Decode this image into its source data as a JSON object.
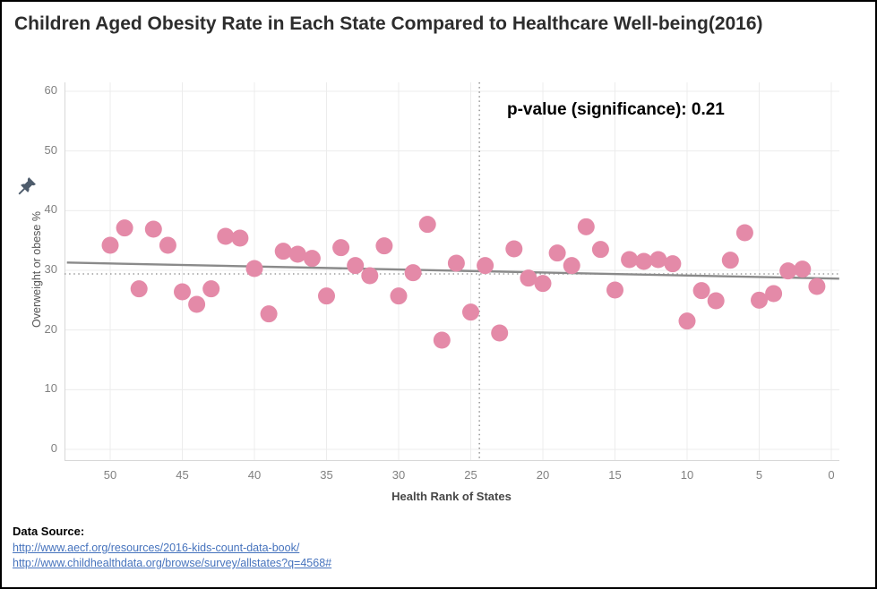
{
  "title": "Children Aged Obesity Rate in Each State Compared to Healthcare Well-being(2016)",
  "annotation": {
    "text": "p-value (significance): 0.21"
  },
  "chart_data": {
    "type": "scatter",
    "title": "Children Aged Obesity Rate in Each State Compared to Healthcare Well-being(2016)",
    "xlabel": "Health Rank of States",
    "ylabel": "Overweight or obese %",
    "x_axis_reversed": true,
    "grid": true,
    "x_ticks": [
      50,
      45,
      40,
      35,
      30,
      25,
      20,
      15,
      10,
      5,
      0
    ],
    "y_ticks": [
      0,
      10,
      20,
      30,
      40,
      50,
      60
    ],
    "xlim": [
      53.5,
      -0.6
    ],
    "ylim": [
      -2,
      61.5
    ],
    "ranks": [
      50,
      49,
      48,
      47,
      46,
      45,
      44,
      43,
      42,
      41,
      40,
      39,
      38,
      37,
      36,
      35,
      34,
      33,
      32,
      31,
      30,
      29,
      28,
      27,
      26,
      25,
      24,
      23,
      22,
      21,
      20,
      19,
      18,
      17,
      16,
      15,
      14,
      13,
      12,
      11,
      10,
      9,
      8,
      7,
      6,
      5,
      4,
      3,
      2,
      1
    ],
    "values": [
      34.2,
      37.1,
      26.9,
      36.9,
      34.2,
      26.4,
      24.3,
      26.9,
      35.7,
      35.4,
      30.3,
      22.7,
      33.2,
      32.7,
      32.0,
      25.7,
      33.8,
      30.8,
      29.1,
      34.1,
      25.7,
      29.6,
      37.7,
      18.3,
      31.2,
      23.0,
      30.8,
      19.5,
      33.6,
      28.7,
      27.8,
      32.9,
      30.8,
      37.3,
      33.5,
      26.7,
      31.8,
      31.5,
      31.8,
      31.1,
      21.5,
      26.6,
      24.9,
      31.7,
      36.3,
      25.0,
      26.1,
      29.9,
      30.2,
      27.3
    ],
    "trend_line": {
      "start": {
        "rank": 53.0,
        "value": 31.3
      },
      "end": {
        "rank": -0.55,
        "value": 28.6
      }
    },
    "reference_lines": {
      "vertical_rank": 24.4,
      "horizontal_value": 29.4
    },
    "legend": "none"
  },
  "footer": {
    "label": "Data Source:",
    "links": [
      "http://www.aecf.org/resources/2016-kids-count-data-book/",
      "http://www.childhealthdata.org/browse/survey/allstates?q=4568#"
    ]
  },
  "icons": {
    "pin": "pushpin-icon"
  },
  "colors": {
    "dot": "#e48aa8",
    "trend": "#8a8a8a",
    "reference": "#9b9b9b",
    "grid": "#ececec",
    "axis_line": "#d8d8d8",
    "link": "#4673bd",
    "pin": "#4e5c6c",
    "title_text": "#2d2d2d",
    "tick_text": "#818181"
  }
}
